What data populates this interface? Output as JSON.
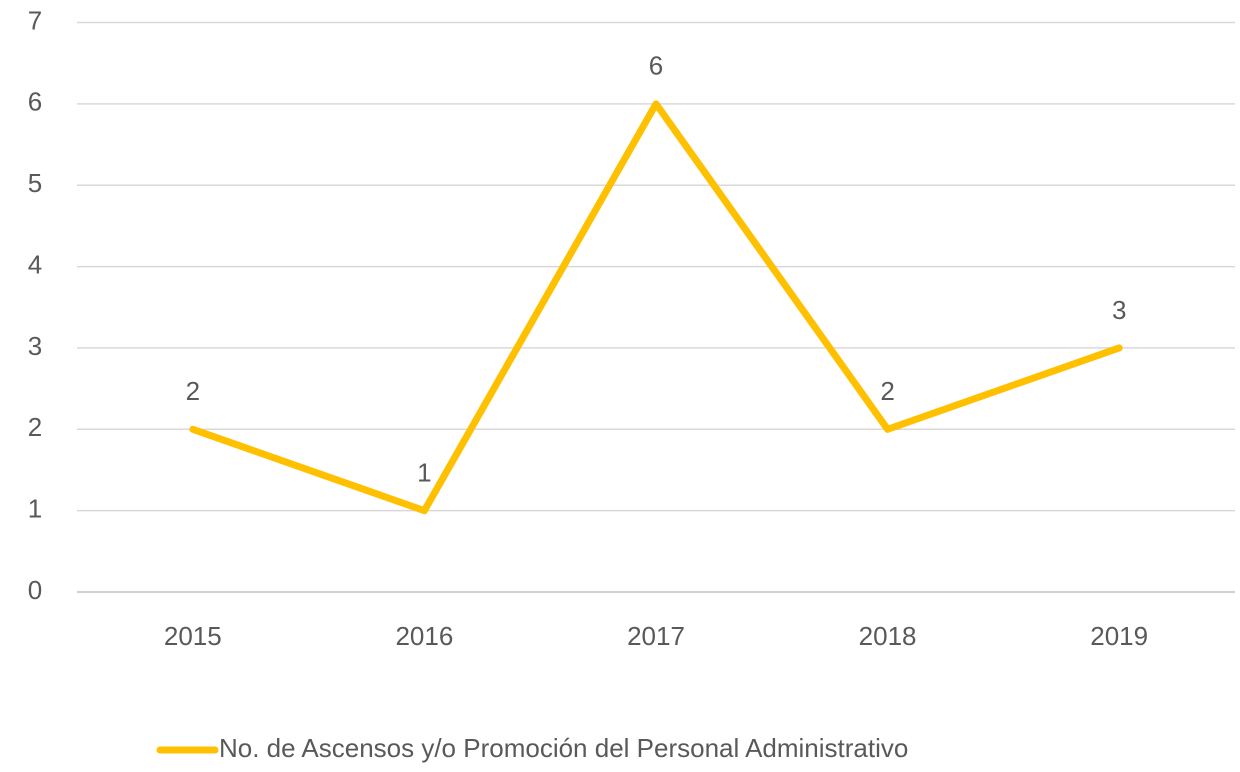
{
  "chart_data": {
    "type": "line",
    "categories": [
      "2015",
      "2016",
      "2017",
      "2018",
      "2019"
    ],
    "series": [
      {
        "name": "No. de Ascensos y/o Promoción del Personal Administrativo",
        "color": "#FFC000",
        "values": [
          2,
          1,
          6,
          2,
          3
        ]
      }
    ],
    "ylim": [
      0,
      7
    ],
    "yticks": [
      0,
      1,
      2,
      3,
      4,
      5,
      6,
      7
    ],
    "grid": true,
    "legend": "bottom"
  }
}
